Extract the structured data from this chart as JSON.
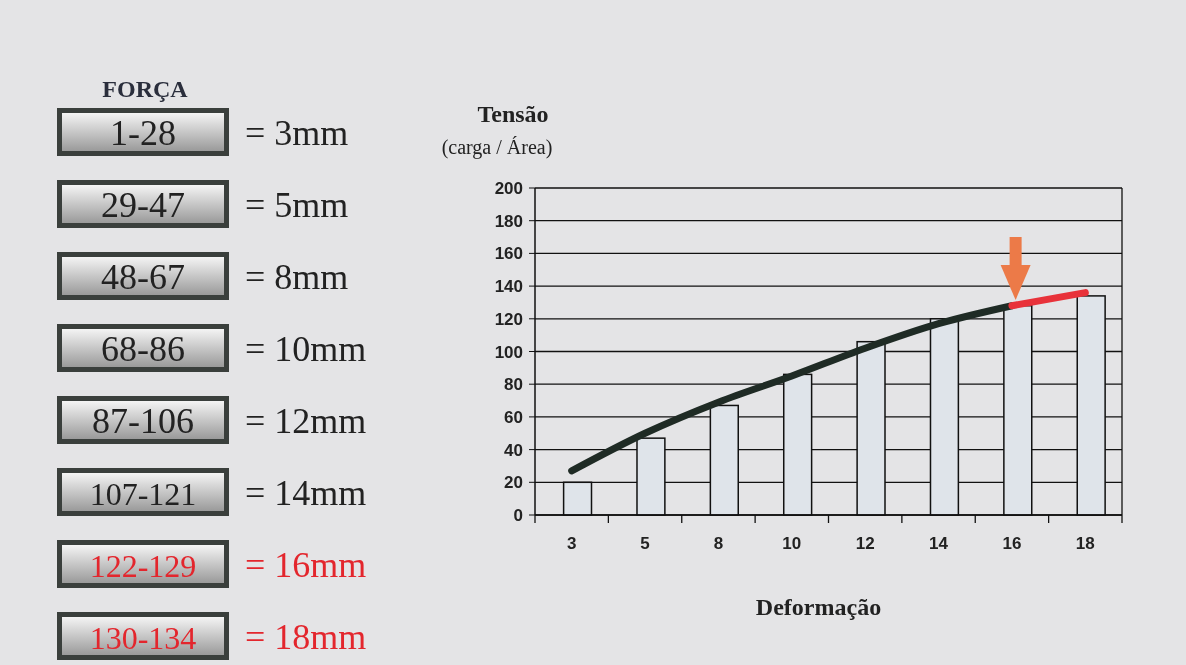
{
  "chart_data": [
    {
      "type": "other",
      "title": "FORÇA",
      "categories": [
        "1-28",
        "29-47",
        "48-67",
        "68-86",
        "87-106",
        "107-121",
        "122-129",
        "130-134"
      ],
      "value_labels": [
        "= 3mm",
        "= 5mm",
        "= 8mm",
        "= 10mm",
        "= 12mm",
        "= 14mm",
        "= 16mm",
        "= 18mm"
      ],
      "colors": [
        "#222222",
        "#222222",
        "#222222",
        "#222222",
        "#222222",
        "#222222",
        "#e3262d",
        "#e3262d"
      ]
    },
    {
      "type": "bar",
      "ylabel": "Tensão",
      "xlabel": "Deformação",
      "annotations": [
        "(carga / Área)"
      ],
      "categories": [
        "3",
        "5",
        "8",
        "10",
        "12",
        "14",
        "16",
        "18"
      ],
      "series": [
        {
          "type": "bar",
          "color": "#dfe4ea",
          "values": [
            20,
            47,
            67,
            86,
            106,
            120,
            128,
            134
          ]
        },
        {
          "type": "line",
          "color": "#1f2b25",
          "values": [
            27,
            50,
            69,
            85,
            102,
            117,
            128,
            null
          ]
        },
        {
          "type": "line",
          "color": "#e8323a",
          "values": [
            null,
            null,
            null,
            null,
            null,
            null,
            128,
            136
          ]
        }
      ],
      "ylim": [
        0,
        200
      ],
      "yticks": [
        0,
        20,
        40,
        60,
        80,
        100,
        120,
        140,
        160,
        180,
        200
      ],
      "grid": "y"
    }
  ]
}
